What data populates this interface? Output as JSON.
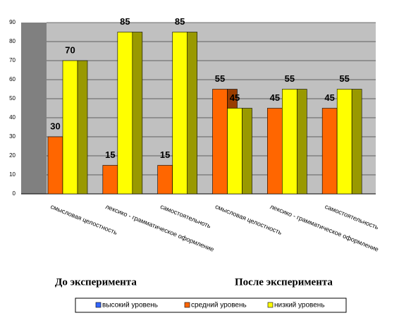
{
  "chart_data": {
    "type": "bar",
    "categories": [
      "смысловая  целостность",
      "лексико  - грамматическое  оформление",
      "самостоятельноть",
      "смысловая  целостность",
      "лексико  - грамматическое  оформление",
      "самостоятельность"
    ],
    "groups": [
      "До эксперимента",
      "После эксперимента"
    ],
    "series": [
      {
        "name": "высокий уровень",
        "color": "#3366ff",
        "values": [
          0,
          0,
          0,
          0,
          0,
          0
        ]
      },
      {
        "name": "средний уровень",
        "color": "#ff6600",
        "values": [
          30,
          15,
          15,
          55,
          45,
          45
        ]
      },
      {
        "name": "низкий уровень",
        "color": "#ffff00",
        "values": [
          70,
          85,
          85,
          45,
          55,
          55
        ]
      }
    ],
    "ylim": [
      0,
      90
    ],
    "yticks": [
      0,
      10,
      20,
      30,
      40,
      50,
      60,
      70,
      80,
      90
    ],
    "grid": true
  }
}
